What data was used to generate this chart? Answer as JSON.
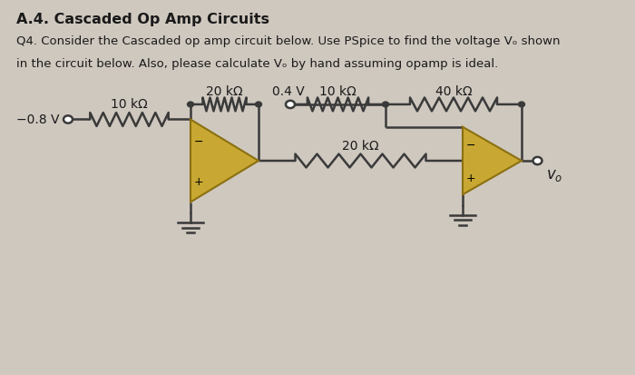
{
  "background_color": "#cfc8bf",
  "title_line1": "A.4. Cascaded Op Amp Circuits",
  "title_line2": "Q4. Consider the Cascaded op amp circuit below. Use PSpice to find the voltage Vₒ shown",
  "title_line3": "in the circuit below. Also, please calculate Vₒ by hand assuming opamp is ideal.",
  "opamp_color": "#c8a832",
  "opamp_edge": "#8a7010",
  "wire_color": "#3a3a3a",
  "text_color": "#1a1a1a",
  "label_neg08v": "−0.8 V",
  "label_10k1": "10 kΩ",
  "label_20k_fb": "20 kΩ",
  "label_04v": "0.4 V",
  "label_10k2": "10 kΩ",
  "label_40k": "40 kΩ",
  "label_20k_mid": "20 kΩ",
  "label_vo": "$v_o$"
}
